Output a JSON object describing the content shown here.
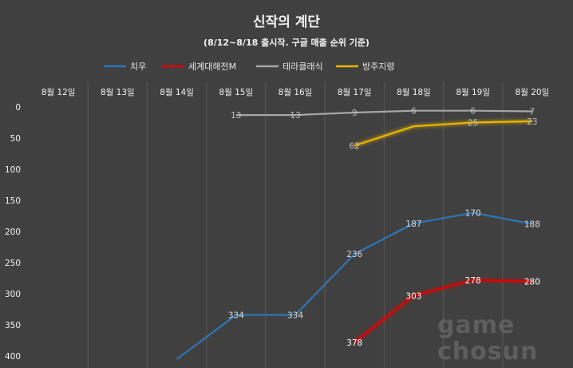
{
  "chart_data": {
    "type": "line",
    "title": "신작의 계단",
    "subtitle": "(8/12~8/18 출시작. 구글 매출 순위 기준)",
    "categories": [
      "8월 12일",
      "8월 13일",
      "8월 14일",
      "8월 15일",
      "8월 16일",
      "8월 17일",
      "8월 18일",
      "8월 19일",
      "8월 20일"
    ],
    "ylim": [
      0,
      400
    ],
    "yticks": [
      "0",
      "50",
      "100",
      "150",
      "200",
      "250",
      "300",
      "350",
      "400"
    ],
    "y_reversed": true,
    "grid": "vertical",
    "legend_position": "top",
    "series": [
      {
        "name": "치우",
        "color": "#2e75b6",
        "label_color": "#d9d9d9",
        "values": [
          null,
          null,
          405,
          334,
          334,
          236,
          187,
          170,
          188
        ],
        "labels": [
          "",
          "",
          "",
          "334",
          "334",
          "236",
          "187",
          "170",
          "188"
        ]
      },
      {
        "name": "세계대해전M",
        "color": "#e00000",
        "label_color": "#ffffff",
        "values": [
          null,
          null,
          null,
          null,
          null,
          378,
          303,
          278,
          280
        ],
        "labels": [
          "",
          "",
          "",
          "",
          "",
          "378",
          "303",
          "278",
          "280"
        ]
      },
      {
        "name": "테라클래식",
        "color": "#a6a6a6",
        "label_color": "#bfbfbf",
        "values": [
          null,
          null,
          null,
          13,
          13,
          9,
          6,
          6,
          7
        ],
        "labels": [
          "",
          "",
          "",
          "13",
          "13",
          "9",
          "6",
          "6",
          "7"
        ]
      },
      {
        "name": "방주지령",
        "color": "#e8b400",
        "label_color": "#bfbfbf",
        "values": [
          null,
          null,
          null,
          null,
          null,
          62,
          31,
          25,
          23
        ],
        "labels": [
          "",
          "",
          "",
          "",
          "",
          "62",
          "",
          "25",
          "23"
        ]
      }
    ]
  },
  "watermark": {
    "line1": "game",
    "line2": "chosun"
  }
}
